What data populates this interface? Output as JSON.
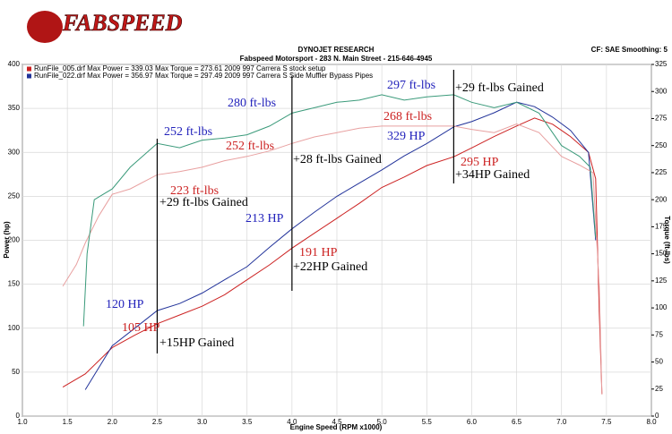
{
  "chart_data": {
    "type": "line",
    "logo": "FABSPEED",
    "title": "DYNOJET RESEARCH",
    "subtitle": "Fabspeed Motorsport - 283 N. Main Street - 215-646-4945",
    "corner_note": "CF: SAE  Smoothing: 5",
    "xlabel": "Engine Speed (RPM x1000)",
    "ylabel": "Power (hp)",
    "y2label": "Torque (ft-lbs)",
    "xlim": [
      1.0,
      8.0
    ],
    "ylim": [
      0,
      400
    ],
    "y2lim": [
      0,
      325
    ],
    "xticks": [
      {
        "value": 1,
        "label": "1.0"
      },
      {
        "value": 1.5,
        "label": "1.5"
      },
      {
        "value": 2,
        "label": "2.0"
      },
      {
        "value": 2.5,
        "label": "2.5"
      },
      {
        "value": 3,
        "label": "3.0"
      },
      {
        "value": 3.5,
        "label": "3.5"
      },
      {
        "value": 4,
        "label": "4.0"
      },
      {
        "value": 4.5,
        "label": "4.5"
      },
      {
        "value": 5,
        "label": "5.0"
      },
      {
        "value": 5.5,
        "label": "5.5"
      },
      {
        "value": 6,
        "label": "6.0"
      },
      {
        "value": 6.5,
        "label": "6.5"
      },
      {
        "value": 7,
        "label": "7.0"
      },
      {
        "value": 7.5,
        "label": "7.5"
      },
      {
        "value": 8,
        "label": "8.0"
      }
    ],
    "yticks": [
      0,
      50,
      100,
      150,
      200,
      250,
      300,
      350,
      400
    ],
    "y2ticks": [
      0,
      25,
      50,
      75,
      100,
      125,
      150,
      175,
      200,
      225,
      250,
      275,
      300,
      325
    ],
    "grid": true,
    "series": [
      {
        "name": "RunFile_005.drf Max Power = 339.03   Max Torque = 273.61     2009 997 Carrera S stock setup",
        "color": "#cc2222",
        "x": [
          1.45,
          1.7,
          2.0,
          2.25,
          2.5,
          2.75,
          3.0,
          3.25,
          3.5,
          3.75,
          4.0,
          4.25,
          4.5,
          4.75,
          5.0,
          5.25,
          5.5,
          5.8,
          6.0,
          6.25,
          6.5,
          6.7,
          6.9,
          7.1,
          7.3,
          7.38,
          7.42,
          7.45
        ],
        "values": [
          33,
          48,
          78,
          92,
          105,
          115,
          125,
          138,
          155,
          172,
          191,
          208,
          225,
          242,
          260,
          272,
          285,
          295,
          305,
          318,
          330,
          339,
          332,
          318,
          300,
          270,
          120,
          25
        ]
      },
      {
        "name": "RunFile_022.drf Max Power = 356.97   Max Torque = 297.49     2009 997 Carrera S Side Muffler Bypass Pipes",
        "color": "#22339a",
        "x": [
          1.7,
          1.85,
          2.0,
          2.25,
          2.5,
          2.75,
          3.0,
          3.25,
          3.5,
          3.75,
          4.0,
          4.25,
          4.5,
          4.75,
          5.0,
          5.25,
          5.5,
          5.8,
          6.0,
          6.25,
          6.5,
          6.7,
          6.9,
          7.1,
          7.3,
          7.38
        ],
        "values": [
          30,
          55,
          80,
          100,
          120,
          128,
          140,
          155,
          170,
          192,
          213,
          232,
          250,
          265,
          280,
          296,
          310,
          329,
          335,
          345,
          357,
          352,
          340,
          325,
          300,
          200
        ]
      },
      {
        "color": "#e8a0a0",
        "axis": "y2",
        "x": [
          1.45,
          1.6,
          1.7,
          1.85,
          2.0,
          2.2,
          2.5,
          2.75,
          3.0,
          3.25,
          3.5,
          3.75,
          4.0,
          4.25,
          4.5,
          4.75,
          5.0,
          5.5,
          5.8,
          6.0,
          6.25,
          6.5,
          6.75,
          7.0,
          7.2,
          7.35,
          7.42,
          7.45
        ],
        "values": [
          120,
          140,
          160,
          185,
          205,
          210,
          223,
          226,
          230,
          236,
          240,
          245,
          252,
          258,
          262,
          266,
          268,
          268,
          268,
          265,
          262,
          270,
          262,
          240,
          232,
          225,
          120,
          20
        ]
      },
      {
        "color": "#3a9a7a",
        "axis": "y2",
        "x": [
          1.68,
          1.72,
          1.8,
          1.9,
          2.0,
          2.2,
          2.5,
          2.75,
          3.0,
          3.25,
          3.5,
          3.75,
          4.0,
          4.25,
          4.5,
          4.75,
          5.0,
          5.25,
          5.5,
          5.8,
          6.0,
          6.25,
          6.5,
          6.75,
          7.0,
          7.2,
          7.32,
          7.38
        ],
        "values": [
          83,
          150,
          200,
          205,
          210,
          230,
          252,
          248,
          255,
          257,
          260,
          268,
          280,
          285,
          290,
          292,
          297,
          292,
          295,
          297,
          290,
          285,
          290,
          280,
          250,
          240,
          230,
          165
        ]
      }
    ],
    "reference_lines": [
      2.5,
      4.0,
      5.8
    ],
    "annotations": [
      {
        "text": "252 ft-lbs",
        "color": "#2222bb"
      },
      {
        "text": "223 ft-lbs",
        "color": "#cc2222"
      },
      {
        "text": "+29 ft-lbs Gained",
        "color": "#000000"
      },
      {
        "text": "280 ft-lbs",
        "color": "#2222bb"
      },
      {
        "text": "252 ft-lbs",
        "color": "#cc2222"
      },
      {
        "text": "+28 ft-lbs Gained",
        "color": "#000000"
      },
      {
        "text": "297 ft-lbs",
        "color": "#2222bb"
      },
      {
        "text": "268 ft-lbs",
        "color": "#cc2222"
      },
      {
        "text": "+29 ft-lbs Gained",
        "color": "#000000"
      },
      {
        "text": "120 HP",
        "color": "#2222bb"
      },
      {
        "text": "105 HP",
        "color": "#cc2222"
      },
      {
        "text": "+15HP Gained",
        "color": "#000000"
      },
      {
        "text": "213 HP",
        "color": "#2222bb"
      },
      {
        "text": "191 HP",
        "color": "#cc2222"
      },
      {
        "text": "+22HP Gained",
        "color": "#000000"
      },
      {
        "text": "329 HP",
        "color": "#2222bb"
      },
      {
        "text": "295 HP",
        "color": "#cc2222"
      },
      {
        "text": "+34HP Gained",
        "color": "#000000"
      }
    ]
  }
}
